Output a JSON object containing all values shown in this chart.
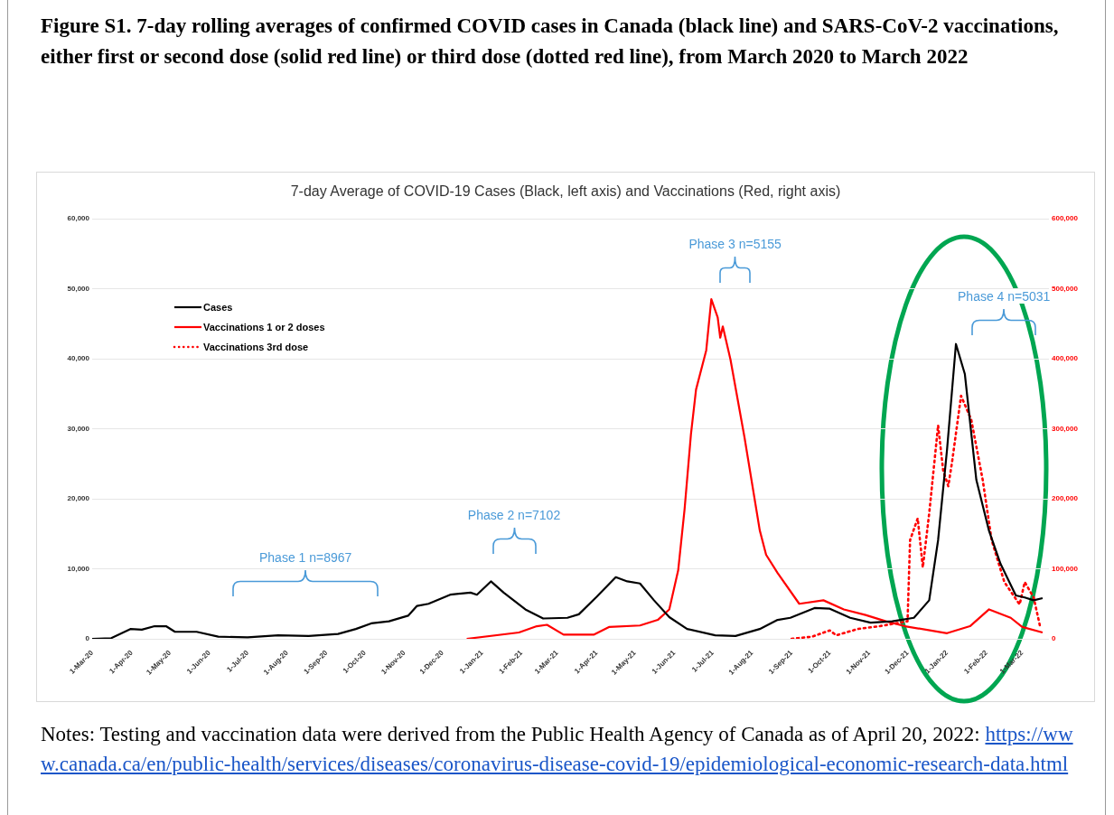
{
  "chart_data": {
    "type": "line",
    "title": "Figure S1. 7-day rolling averages of confirmed COVID cases in Canada (black line) and SARS-CoV-2 vaccinations, either first or second dose (solid red line) or third dose (dotted red line), from March 2020 to March 2022",
    "subtitle": "7-day Average of COVID-19 Cases (Black, left axis) and Vaccinations (Red, right axis)",
    "annotations": [
      "Phase 1 n=8967",
      "Phase 2 n=7102",
      "Phase 3 n=5155",
      "Phase 4 n=5031",
      "Notes: Testing and vaccination data were derived from the Public Health Agency of Canada as of April 20, 2022:",
      "https://www.canada.ca/en/public-health/services/diseases/coronavirus-disease-covid-19/epidemiological-economic-research-data.html"
    ],
    "series": [
      {
        "name": "Cases",
        "color": "#000000",
        "line_style": "solid",
        "x": [
          "2020-03-01",
          "2020-03-16",
          "2020-03-31",
          "2020-04-09",
          "2020-04-19",
          "2020-04-28",
          "2020-05-05",
          "2020-05-22",
          "2020-06-08",
          "2020-07-01",
          "2020-07-25",
          "2020-08-18",
          "2020-09-10",
          "2020-09-24",
          "2020-10-06",
          "2020-10-20",
          "2020-11-04",
          "2020-11-11",
          "2020-11-20",
          "2020-12-07",
          "2020-12-23",
          "2020-12-28",
          "2021-01-08",
          "2021-01-18",
          "2021-02-04",
          "2021-02-18",
          "2021-03-09",
          "2021-03-18",
          "2021-04-01",
          "2021-04-16",
          "2021-04-25",
          "2021-05-05",
          "2021-05-16",
          "2021-05-28",
          "2021-06-11",
          "2021-07-03",
          "2021-07-19",
          "2021-08-07",
          "2021-08-21",
          "2021-08-31",
          "2021-09-19",
          "2021-10-01",
          "2021-10-17",
          "2021-11-02",
          "2021-11-19",
          "2021-12-06",
          "2021-12-18",
          "2021-12-25",
          "2022-01-01",
          "2022-01-08",
          "2022-01-15",
          "2022-01-24",
          "2022-02-03",
          "2022-02-12",
          "2022-02-24",
          "2022-03-03",
          "2022-03-10",
          "2022-03-17"
        ],
        "values": [
          0,
          100,
          1400,
          1300,
          1800,
          1800,
          1000,
          1000,
          300,
          200,
          500,
          400,
          700,
          1400,
          2200,
          2500,
          3300,
          4700,
          5000,
          6300,
          6600,
          6300,
          8200,
          6600,
          4200,
          2900,
          3000,
          3500,
          6000,
          8800,
          8200,
          7900,
          5500,
          3100,
          1400,
          500,
          400,
          1400,
          2700,
          3000,
          4400,
          4300,
          3000,
          2300,
          2500,
          3000,
          5500,
          14100,
          27000,
          42100,
          37800,
          22700,
          15400,
          10700,
          6200,
          5900,
          5500,
          5800
        ]
      },
      {
        "name": "Vaccinations 1 or 2 doses",
        "color": "#ff0000",
        "axis": "y2",
        "line_style": "solid",
        "x": [
          "2020-12-20",
          "2021-01-30",
          "2021-02-13",
          "2021-02-21",
          "2021-03-06",
          "2021-03-30",
          "2021-04-11",
          "2021-05-05",
          "2021-05-19",
          "2021-05-28",
          "2021-06-04",
          "2021-06-09",
          "2021-06-14",
          "2021-06-18",
          "2021-06-26",
          "2021-06-30",
          "2021-07-05",
          "2021-07-07",
          "2021-07-09",
          "2021-07-15",
          "2021-07-26",
          "2021-08-07",
          "2021-08-12",
          "2021-08-21",
          "2021-09-07",
          "2021-09-26",
          "2021-10-12",
          "2021-10-29",
          "2021-11-14",
          "2021-11-29",
          "2022-01-01",
          "2022-01-19",
          "2022-02-03",
          "2022-02-20",
          "2022-03-01",
          "2022-03-17"
        ],
        "values": [
          0,
          9000,
          18000,
          20000,
          6000,
          6000,
          17000,
          19000,
          27000,
          42000,
          98000,
          185000,
          292000,
          356000,
          412000,
          485000,
          459000,
          430000,
          446000,
          399000,
          288000,
          155000,
          120000,
          94000,
          50000,
          55000,
          42000,
          34000,
          25000,
          18000,
          8000,
          18000,
          42000,
          30000,
          17000,
          9000
        ]
      },
      {
        "name": "Vaccinations 3rd dose",
        "color": "#ff0000",
        "axis": "y2",
        "line_style": "dotted",
        "x": [
          "2021-09-01",
          "2021-09-17",
          "2021-10-01",
          "2021-10-06",
          "2021-10-23",
          "2021-11-09",
          "2021-12-01",
          "2021-12-03",
          "2021-12-09",
          "2021-12-13",
          "2021-12-18",
          "2021-12-25",
          "2021-12-29",
          "2022-01-02",
          "2022-01-05",
          "2022-01-12",
          "2022-01-20",
          "2022-01-29",
          "2022-02-05",
          "2022-02-15",
          "2022-02-27",
          "2022-03-03",
          "2022-03-10",
          "2022-03-15"
        ],
        "values": [
          0,
          3000,
          12000,
          5000,
          14000,
          18000,
          25000,
          141000,
          172000,
          102000,
          179000,
          305000,
          240000,
          218000,
          253000,
          347000,
          313000,
          227000,
          141000,
          81000,
          49000,
          81000,
          59000,
          18000
        ]
      }
    ],
    "xlim": [
      "2020-03-01",
      "2022-03-22"
    ],
    "xticks": [
      {
        "value": "2020-03-01",
        "label": "1-Mar-20"
      },
      {
        "value": "2020-04-01",
        "label": "1-Apr-20"
      },
      {
        "value": "2020-05-01",
        "label": "1-May-20"
      },
      {
        "value": "2020-06-01",
        "label": "1-Jun-20"
      },
      {
        "value": "2020-07-01",
        "label": "1-Jul-20"
      },
      {
        "value": "2020-08-01",
        "label": "1-Aug-20"
      },
      {
        "value": "2020-09-01",
        "label": "1-Sep-20"
      },
      {
        "value": "2020-10-01",
        "label": "1-Oct-20"
      },
      {
        "value": "2020-11-01",
        "label": "1-Nov-20"
      },
      {
        "value": "2020-12-01",
        "label": "1-Dec-20"
      },
      {
        "value": "2021-01-01",
        "label": "1-Jan-21"
      },
      {
        "value": "2021-02-01",
        "label": "1-Feb-21"
      },
      {
        "value": "2021-03-01",
        "label": "1-Mar-21"
      },
      {
        "value": "2021-04-01",
        "label": "1-Apr-21"
      },
      {
        "value": "2021-05-01",
        "label": "1-May-21"
      },
      {
        "value": "2021-06-01",
        "label": "1-Jun-21"
      },
      {
        "value": "2021-07-01",
        "label": "1-Jul-21"
      },
      {
        "value": "2021-08-01",
        "label": "1-Aug-21"
      },
      {
        "value": "2021-09-01",
        "label": "1-Sep-21"
      },
      {
        "value": "2021-10-01",
        "label": "1-Oct-21"
      },
      {
        "value": "2021-11-01",
        "label": "1-Nov-21"
      },
      {
        "value": "2021-12-01",
        "label": "1-Dec-21"
      },
      {
        "value": "2022-01-01",
        "label": "1-Jan-22"
      },
      {
        "value": "2022-02-01",
        "label": "1-Feb-22"
      },
      {
        "value": "2022-03-01",
        "label": "1-Mar-22"
      }
    ],
    "ylim": [
      0,
      60000
    ],
    "yticks": [
      0,
      {
        "value": 10000,
        "label": "10,000"
      },
      {
        "value": 20000,
        "label": "20,000"
      },
      {
        "value": 30000,
        "label": "30,000"
      },
      {
        "value": 40000,
        "label": "40,000"
      },
      {
        "value": 50000,
        "label": "50,000"
      },
      {
        "value": 60000,
        "label": "60,000"
      }
    ],
    "y2lim": [
      0,
      600000
    ],
    "y2ticks": [
      0,
      {
        "value": 100000,
        "label": "100,000"
      },
      {
        "value": 200000,
        "label": "200,000"
      },
      {
        "value": 300000,
        "label": "300,000"
      },
      {
        "value": 400000,
        "label": "400,000"
      },
      {
        "value": 500000,
        "label": "500,000"
      },
      {
        "value": 600000,
        "label": "600,000"
      }
    ],
    "grid": "y",
    "legend": "top left",
    "marker": "none"
  }
}
